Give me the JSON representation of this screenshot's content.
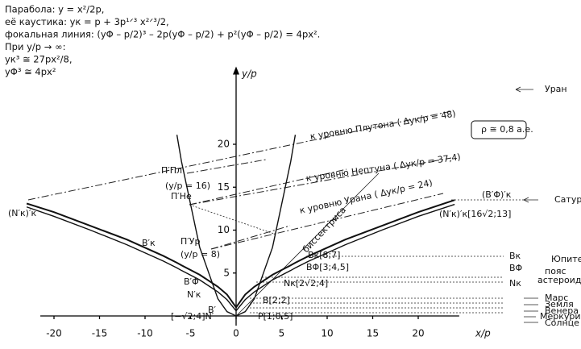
{
  "chart_data": {
    "type": "line",
    "header": [
      "Парабола: y =  x²/2p,",
      "её каустика: yк = p + 3p¹ᐟ³ x²ᐟ³/2,",
      "фокальная линия: (yΦ – p/2)³ – 2p(yΦ – p/2) + p²(yΦ – p/2) = 4px².",
      "При y/p → ∞:",
      "yк³ ≅ 27px²/8,",
      "yΦ³ ≅ 4px²"
    ],
    "xlabel": "x/p",
    "ylabel": "y/p",
    "x": [
      -23,
      -20,
      -16,
      -12,
      -8,
      -6.5,
      -6,
      -4,
      -2,
      -1,
      0,
      1,
      2,
      4,
      6,
      6.5,
      8,
      12,
      16,
      20,
      24
    ],
    "series": [
      {
        "color": "#111",
        "values": [
          null,
          null,
          null,
          null,
          null,
          21.1,
          18,
          8,
          2,
          0.5,
          0,
          0.5,
          2,
          8,
          18,
          21.1,
          null,
          null,
          null,
          null,
          null
        ]
      },
      {
        "color": "#111",
        "values": [
          13.1,
          12.1,
          10.5,
          8.9,
          7.0,
          6.2,
          5.9,
          4.8,
          3.4,
          2.5,
          1.0,
          2.5,
          3.4,
          4.8,
          5.9,
          6.2,
          7.0,
          8.9,
          10.5,
          12.1,
          13.5
        ]
      },
      {
        "color": "#111",
        "values": [
          12.7,
          11.6,
          10.0,
          8.3,
          6.4,
          5.6,
          5.3,
          4.2,
          2.8,
          1.9,
          0.6,
          1.9,
          2.8,
          4.2,
          5.3,
          5.6,
          6.4,
          8.3,
          10.0,
          11.6,
          13.0
        ]
      }
    ],
    "xlim": [
      -21.5,
      24.5
    ],
    "ylim": [
      0,
      28.5
    ],
    "xticks": [
      -20,
      -15,
      -10,
      -5,
      0,
      5,
      10,
      15,
      20
    ],
    "yticks": [
      5,
      10,
      15,
      20
    ],
    "annotations": [
      "к уровню Плутона ( Δyк/p = 48)",
      "к уровню Нептуна ( Δyк/p = 37,4)",
      "к уровню Урана ( Δyк/p = 24)",
      "биссектриса",
      "(y/p = 16)",
      "(y/p = 8)",
      "П′Пл",
      "П′Не",
      "П′Ур",
      "ρ ≅ 0,8 а.е.",
      "Уран",
      "Сатурн",
      "Юпитер",
      "пояс",
      "астероид",
      "Марс",
      "Земля",
      "Венера",
      "Меркурий",
      "Солнце",
      "(N′к)′к",
      "(N′к)′к[16√2;13]",
      "(B′Φ)′к",
      "Bк[8;7]",
      "BΦ[3;4,5]",
      "Nк[2√2;4]",
      "B[2;2]",
      "P[1;0,5]",
      "[−√2;4]N′",
      "B′к",
      "B′Φ",
      "N′к",
      "B′",
      "Bк",
      "BΦ",
      "Nк"
    ]
  }
}
